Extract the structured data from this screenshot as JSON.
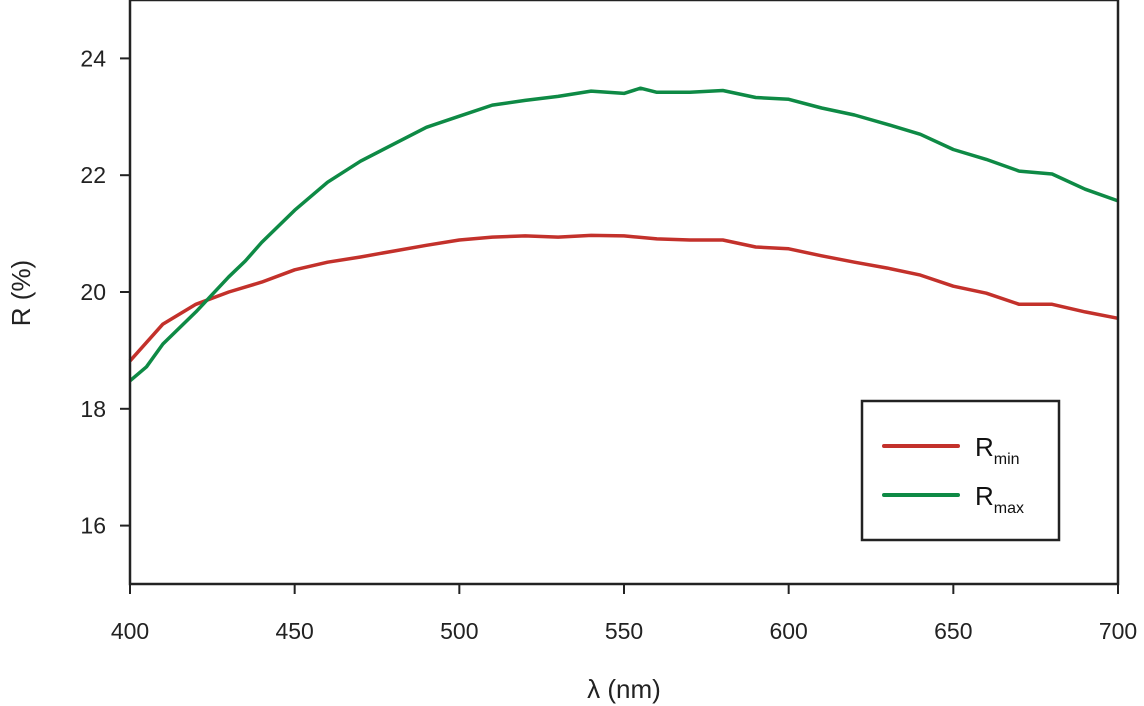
{
  "chart_data": {
    "type": "line",
    "title": "",
    "xlabel": "λ (nm)",
    "ylabel": "R (%)",
    "xlim": [
      400,
      700
    ],
    "ylim": [
      15,
      25
    ],
    "xticks": [
      400,
      450,
      500,
      550,
      600,
      650,
      700
    ],
    "yticks": [
      16,
      18,
      20,
      22,
      24
    ],
    "grid": false,
    "legend_position": "bottom-right",
    "series": [
      {
        "name": "R_min",
        "label_main": "R",
        "label_sub": "min",
        "color": "#c3312b",
        "x": [
          400,
          410,
          420,
          430,
          440,
          450,
          460,
          470,
          480,
          490,
          500,
          510,
          520,
          530,
          540,
          550,
          560,
          570,
          580,
          590,
          600,
          610,
          620,
          630,
          640,
          650,
          660,
          670,
          680,
          690,
          700
        ],
        "y": [
          18.82,
          19.45,
          19.79,
          20.0,
          20.17,
          20.38,
          20.51,
          20.6,
          20.7,
          20.8,
          20.89,
          20.94,
          20.96,
          20.94,
          20.97,
          20.96,
          20.91,
          20.89,
          20.89,
          20.77,
          20.74,
          20.62,
          20.51,
          20.41,
          20.29,
          20.1,
          19.98,
          19.79,
          19.79,
          19.66,
          19.55
        ]
      },
      {
        "name": "R_max",
        "label_main": "R",
        "label_sub": "max",
        "color": "#0e8a45",
        "x": [
          400,
          405,
          410,
          420,
          430,
          435,
          440,
          450,
          460,
          470,
          480,
          490,
          500,
          510,
          520,
          530,
          540,
          550,
          555,
          560,
          570,
          580,
          590,
          600,
          610,
          620,
          630,
          640,
          650,
          660,
          670,
          680,
          690,
          700
        ],
        "y": [
          18.48,
          18.72,
          19.11,
          19.66,
          20.26,
          20.53,
          20.85,
          21.4,
          21.88,
          22.24,
          22.53,
          22.82,
          23.01,
          23.2,
          23.28,
          23.35,
          23.44,
          23.4,
          23.49,
          23.42,
          23.42,
          23.45,
          23.33,
          23.3,
          23.15,
          23.03,
          22.87,
          22.7,
          22.44,
          22.27,
          22.07,
          22.02,
          21.76,
          21.56
        ]
      }
    ]
  }
}
